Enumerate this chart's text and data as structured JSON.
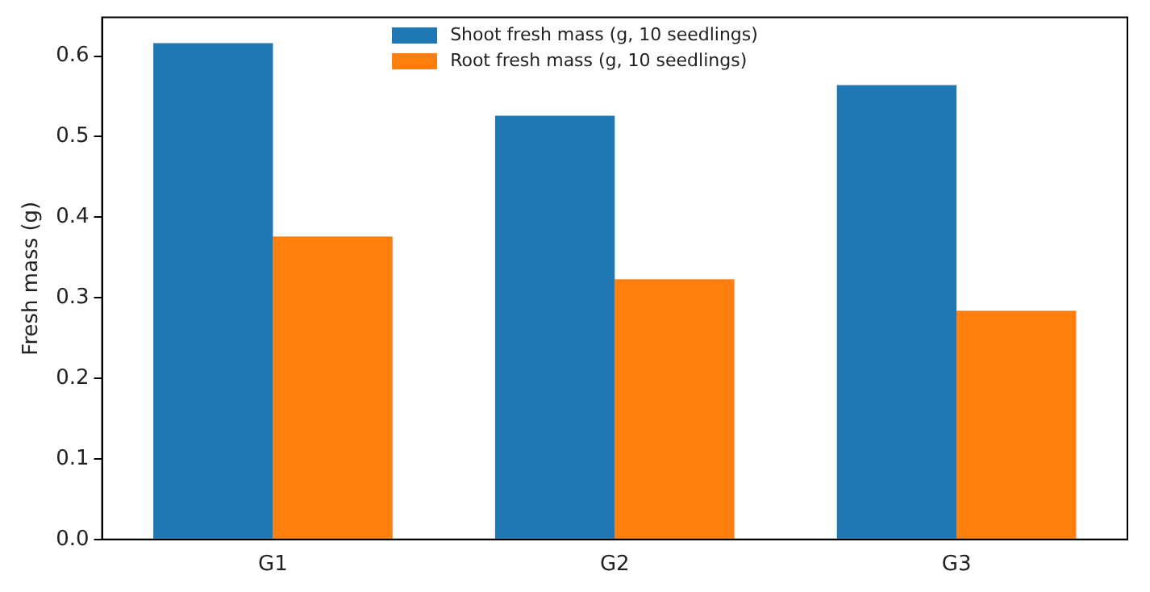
{
  "chart_data": {
    "type": "bar",
    "ylabel": "Fresh mass (g)",
    "categories": [
      "G1",
      "G2",
      "G3"
    ],
    "series": [
      {
        "name": "Shoot fresh mass (g, 10 seedlings)",
        "color": "#1f77b4",
        "values": [
          0.616,
          0.526,
          0.564
        ]
      },
      {
        "name": "Root fresh mass (g, 10 seedlings)",
        "color": "#ff7f0e",
        "values": [
          0.376,
          0.323,
          0.284
        ]
      }
    ],
    "ylim": [
      0,
      0.648
    ],
    "yticks": [
      {
        "value": 0,
        "label": "0.0"
      },
      {
        "value": 0.1,
        "label": "0.1"
      },
      {
        "value": 0.2,
        "label": "0.2"
      },
      {
        "value": 0.3,
        "label": "0.3"
      },
      {
        "value": 0.4,
        "label": "0.4"
      },
      {
        "value": 0.5,
        "label": "0.5"
      },
      {
        "value": 0.6,
        "label": "0.6"
      }
    ],
    "grid": false,
    "legend": "top"
  }
}
